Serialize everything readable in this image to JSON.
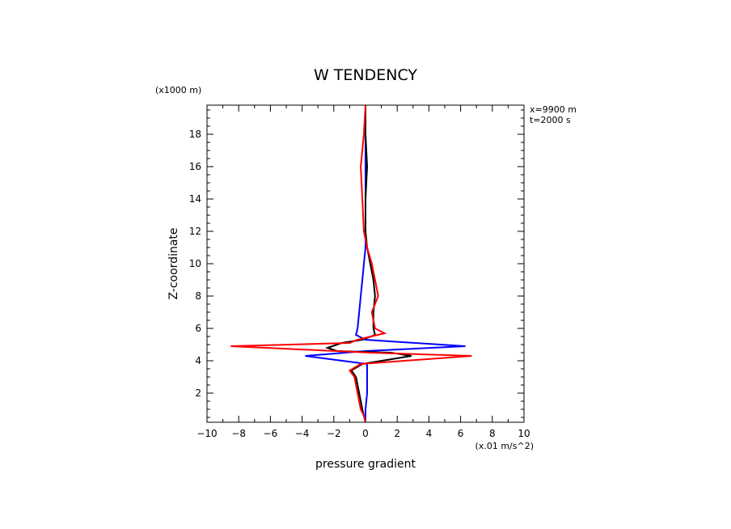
{
  "chart_data": {
    "type": "line",
    "title": "W TENDENCY",
    "xlabel": "pressure gradient",
    "ylabel": "Z-coordinate",
    "x_units": "(x.01 m/s^2)",
    "y_units": "(x1000 m)",
    "annotations": [
      "x=9900 m",
      "t=2000 s"
    ],
    "xlim": [
      -10,
      10
    ],
    "ylim": [
      0.2,
      19.8
    ],
    "x_ticks": [
      -10,
      -8,
      -6,
      -4,
      -2,
      0,
      2,
      4,
      6,
      8,
      10
    ],
    "y_ticks": [
      2,
      4,
      6,
      8,
      10,
      12,
      14,
      16,
      18
    ],
    "grid": false,
    "series": [
      {
        "color": "#0000ff",
        "points": [
          [
            0.0,
            0.2
          ],
          [
            0.0,
            1.0
          ],
          [
            0.1,
            2.0
          ],
          [
            0.1,
            3.0
          ],
          [
            0.1,
            3.8
          ],
          [
            -3.8,
            4.3
          ],
          [
            0.0,
            4.6
          ],
          [
            6.3,
            4.9
          ],
          [
            0.0,
            5.3
          ],
          [
            -0.6,
            5.6
          ],
          [
            -0.5,
            6.0
          ],
          [
            -0.4,
            7.0
          ],
          [
            -0.3,
            8.0
          ],
          [
            -0.2,
            9.0
          ],
          [
            -0.1,
            10.0
          ],
          [
            0.0,
            11.0
          ],
          [
            0.0,
            12.0
          ],
          [
            0.0,
            14.0
          ],
          [
            0.0,
            16.0
          ],
          [
            0.0,
            18.0
          ],
          [
            0.0,
            19.8
          ]
        ]
      },
      {
        "color": "#000000",
        "points": [
          [
            0.0,
            0.2
          ],
          [
            -0.1,
            0.6
          ],
          [
            -0.2,
            1.0
          ],
          [
            -0.4,
            2.0
          ],
          [
            -0.6,
            3.0
          ],
          [
            -0.9,
            3.4
          ],
          [
            -0.2,
            3.8
          ],
          [
            2.9,
            4.3
          ],
          [
            1.6,
            4.5
          ],
          [
            -1.8,
            4.6
          ],
          [
            -2.4,
            4.8
          ],
          [
            -1.5,
            5.1
          ],
          [
            -0.2,
            5.3
          ],
          [
            0.6,
            5.6
          ],
          [
            0.5,
            6.0
          ],
          [
            0.5,
            7.0
          ],
          [
            0.6,
            8.0
          ],
          [
            0.5,
            9.0
          ],
          [
            0.3,
            10.0
          ],
          [
            0.1,
            11.0
          ],
          [
            0.0,
            12.0
          ],
          [
            0.0,
            14.0
          ],
          [
            0.1,
            16.0
          ],
          [
            0.0,
            18.0
          ],
          [
            0.0,
            19.8
          ]
        ]
      },
      {
        "color": "#ff0000",
        "points": [
          [
            0.0,
            0.2
          ],
          [
            -0.1,
            0.6
          ],
          [
            -0.3,
            1.0
          ],
          [
            -0.5,
            2.0
          ],
          [
            -0.7,
            3.0
          ],
          [
            -1.0,
            3.4
          ],
          [
            -0.3,
            3.8
          ],
          [
            6.7,
            4.3
          ],
          [
            0.3,
            4.5
          ],
          [
            -8.5,
            4.9
          ],
          [
            -1.0,
            5.1
          ],
          [
            -0.5,
            5.3
          ],
          [
            1.2,
            5.7
          ],
          [
            0.6,
            6.0
          ],
          [
            0.4,
            7.0
          ],
          [
            0.8,
            8.0
          ],
          [
            0.6,
            9.0
          ],
          [
            0.4,
            10.0
          ],
          [
            0.1,
            11.0
          ],
          [
            -0.1,
            12.0
          ],
          [
            -0.2,
            14.0
          ],
          [
            -0.3,
            16.0
          ],
          [
            -0.1,
            18.0
          ],
          [
            0.0,
            19.8
          ]
        ]
      }
    ]
  }
}
